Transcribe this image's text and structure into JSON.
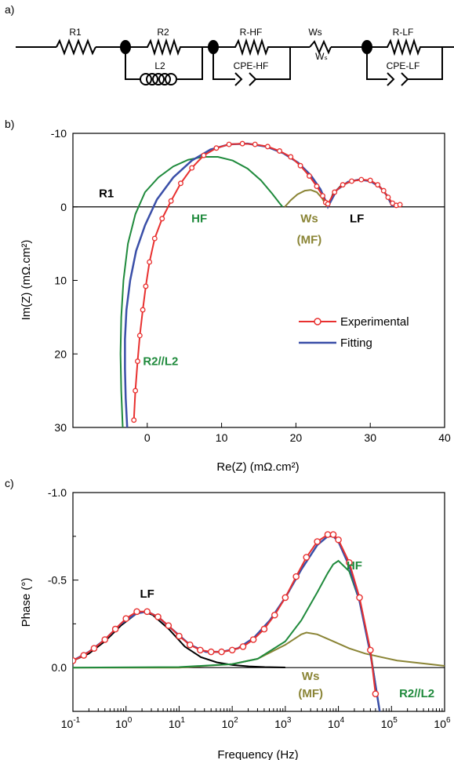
{
  "panels": {
    "a": "a)",
    "b": "b)",
    "c": "c)"
  },
  "circuit": {
    "labels": [
      "R1",
      "R2",
      "L2",
      "R-HF",
      "CPE-HF",
      "Ws",
      "Wₛ",
      "R-LF",
      "CPE-LF"
    ]
  },
  "colors": {
    "experimental": "#e8302f",
    "fitting": "#3a4fa8",
    "hf": "#1f8a3c",
    "ws": "#8a8435",
    "lf": "#000000"
  },
  "chart_data": [
    {
      "type": "scatter",
      "panel": "b",
      "xlabel": "Re(Z) (mΩ.cm²)",
      "ylabel": "Im(Z) (mΩ.cm²)",
      "xlim": [
        -10,
        40
      ],
      "ylim": [
        -10,
        30
      ],
      "y_inverted": true,
      "xticks": [
        "0",
        "10",
        "20",
        "30",
        "40"
      ],
      "yticks": [
        "-10",
        "0",
        "10",
        "20",
        "30"
      ],
      "legend": {
        "position": "center-right",
        "entries": [
          "Experimental",
          "Fitting"
        ]
      },
      "annotations": [
        {
          "text": "R1",
          "color": "#000000",
          "x": -5.5,
          "y": -1.3
        },
        {
          "text": "HF",
          "color": "#1f8a3c",
          "x": 7,
          "y": 2.1
        },
        {
          "text": "Ws",
          "color": "#8a8435",
          "x": 21.8,
          "y": 2.1
        },
        {
          "text": "(MF)",
          "color": "#8a8435",
          "x": 21.8,
          "y": 5.0
        },
        {
          "text": "LF",
          "color": "#000000",
          "x": 28.2,
          "y": 2.1
        },
        {
          "text": "R2//L2",
          "color": "#1f8a3c",
          "x": 1.8,
          "y": 21.5
        }
      ],
      "series": [
        {
          "name": "Experimental",
          "color": "#e8302f",
          "marker": "circle",
          "x": [
            -1.8,
            -1.6,
            -1.3,
            -1.0,
            -0.6,
            -0.2,
            0.3,
            1.0,
            2.0,
            3.2,
            4.5,
            6.0,
            7.6,
            9.3,
            11.0,
            12.8,
            14.5,
            16.2,
            17.8,
            19.3,
            20.6,
            21.8,
            22.8,
            23.6,
            24.0,
            24.3,
            25.2,
            26.3,
            27.5,
            28.8,
            30.0,
            31.0,
            31.8,
            32.4,
            33.0,
            33.5,
            34.0
          ],
          "y": [
            29.0,
            25.0,
            21.0,
            17.5,
            14.0,
            10.8,
            7.5,
            4.3,
            1.6,
            -0.8,
            -3.2,
            -5.3,
            -7.0,
            -8.0,
            -8.5,
            -8.6,
            -8.5,
            -8.2,
            -7.6,
            -6.8,
            -5.6,
            -4.2,
            -2.8,
            -1.5,
            -0.6,
            -0.4,
            -2.0,
            -3.0,
            -3.5,
            -3.7,
            -3.6,
            -3.0,
            -2.2,
            -1.3,
            -0.5,
            -0.2,
            -0.3
          ]
        },
        {
          "name": "Fitting",
          "color": "#3a4fa8",
          "marker": "none",
          "x": [
            -2.7,
            -2.9,
            -3.0,
            -3.0,
            -2.8,
            -2.3,
            -1.5,
            -0.3,
            1.3,
            3.5,
            6.0,
            8.5,
            11.0,
            13.5,
            16.0,
            18.3,
            20.3,
            22.0,
            23.3,
            24.0,
            24.3,
            25.5,
            27.0,
            28.5,
            30.0,
            31.3,
            32.3,
            33.0
          ],
          "y": [
            30.0,
            26.0,
            22.0,
            18.0,
            14.0,
            10.0,
            6.0,
            2.5,
            -1.0,
            -4.0,
            -6.3,
            -7.8,
            -8.5,
            -8.6,
            -8.2,
            -7.3,
            -6.0,
            -4.3,
            -2.4,
            -0.8,
            0.0,
            -2.3,
            -3.4,
            -3.7,
            -3.5,
            -2.7,
            -1.5,
            0.0
          ]
        },
        {
          "name": "HF",
          "color": "#1f8a3c",
          "marker": "none",
          "x": [
            -3.3,
            -3.5,
            -3.6,
            -3.5,
            -3.2,
            -2.6,
            -1.6,
            -0.3,
            1.5,
            3.5,
            5.5,
            7.5,
            9.5,
            11.5,
            13.5,
            15.3,
            16.8,
            17.8,
            18.2
          ],
          "y": [
            30.0,
            25.0,
            20.0,
            15.0,
            10.0,
            5.0,
            1.0,
            -2.0,
            -4.0,
            -5.5,
            -6.4,
            -6.8,
            -6.8,
            -6.3,
            -5.2,
            -3.6,
            -1.8,
            -0.5,
            0.0
          ]
        },
        {
          "name": "Ws",
          "color": "#8a8435",
          "marker": "none",
          "x": [
            18.5,
            19.3,
            20.2,
            21.2,
            22.0,
            22.8,
            23.5,
            24.2
          ],
          "y": [
            0.0,
            -0.9,
            -1.7,
            -2.2,
            -2.3,
            -2.0,
            -1.2,
            0.0
          ]
        },
        {
          "name": "LF",
          "color": "#000000",
          "marker": "none",
          "x": [
            24.3,
            25.0,
            26.0,
            27.0,
            28.0,
            29.0,
            30.0,
            31.0,
            31.8,
            32.4,
            33.0
          ],
          "y": [
            0.0,
            -1.8,
            -2.8,
            -3.3,
            -3.6,
            -3.7,
            -3.5,
            -3.0,
            -2.2,
            -1.2,
            0.0
          ]
        }
      ]
    },
    {
      "type": "line",
      "panel": "c",
      "xlabel": "Frequency (Hz)",
      "ylabel": "Phase (°)",
      "x_scale": "log",
      "xlim": [
        0.1,
        1000000
      ],
      "ylim": [
        -1.0,
        0.25
      ],
      "y_inverted": true,
      "yticks": [
        "-1.0",
        "-0.5",
        "0.0"
      ],
      "xticks": [
        {
          "base": "10",
          "exp": "-1"
        },
        {
          "base": "10",
          "exp": "0"
        },
        {
          "base": "10",
          "exp": "1"
        },
        {
          "base": "10",
          "exp": "2"
        },
        {
          "base": "10",
          "exp": "3"
        },
        {
          "base": "10",
          "exp": "4"
        },
        {
          "base": "10",
          "exp": "5"
        },
        {
          "base": "10",
          "exp": "6"
        }
      ],
      "annotations": [
        {
          "text": "LF",
          "color": "#000000",
          "x": 2.5,
          "y": -0.4
        },
        {
          "text": "HF",
          "color": "#1f8a3c",
          "x": 20000,
          "y": -0.56
        },
        {
          "text": "Ws",
          "color": "#8a8435",
          "x": 3000,
          "y": 0.07
        },
        {
          "text": "(MF)",
          "color": "#8a8435",
          "x": 3000,
          "y": 0.17
        },
        {
          "text": "R2//L2",
          "color": "#1f8a3c",
          "x": 300000,
          "y": 0.17
        }
      ],
      "series": [
        {
          "name": "Experimental",
          "color": "#e8302f",
          "marker": "circle",
          "x": [
            0.1,
            0.16,
            0.25,
            0.4,
            0.63,
            1.0,
            1.6,
            2.5,
            4.0,
            6.3,
            10,
            16,
            25,
            40,
            63,
            100,
            160,
            250,
            400,
            630,
            1000,
            1600,
            2500,
            4000,
            6300,
            8000,
            10000,
            16000,
            25000,
            40000,
            50000
          ],
          "y": [
            -0.04,
            -0.07,
            -0.11,
            -0.16,
            -0.22,
            -0.28,
            -0.32,
            -0.32,
            -0.29,
            -0.24,
            -0.18,
            -0.13,
            -0.1,
            -0.09,
            -0.09,
            -0.1,
            -0.12,
            -0.16,
            -0.22,
            -0.3,
            -0.4,
            -0.52,
            -0.63,
            -0.72,
            -0.76,
            -0.76,
            -0.73,
            -0.6,
            -0.4,
            -0.1,
            0.15
          ]
        },
        {
          "name": "Fitting",
          "color": "#3a4fa8",
          "marker": "none",
          "x": [
            0.1,
            0.2,
            0.4,
            0.8,
            1.6,
            2.5,
            4,
            8,
            16,
            32,
            64,
            128,
            256,
            512,
            1000,
            2000,
            4000,
            6300,
            8000,
            10000,
            16000,
            25000,
            40000,
            50000,
            60000
          ],
          "y": [
            -0.04,
            -0.09,
            -0.16,
            -0.25,
            -0.31,
            -0.32,
            -0.29,
            -0.21,
            -0.13,
            -0.09,
            -0.09,
            -0.11,
            -0.17,
            -0.27,
            -0.4,
            -0.56,
            -0.7,
            -0.75,
            -0.75,
            -0.72,
            -0.58,
            -0.38,
            -0.08,
            0.1,
            0.25
          ]
        },
        {
          "name": "HF",
          "color": "#1f8a3c",
          "marker": "none",
          "x": [
            0.1,
            10,
            100,
            300,
            1000,
            2000,
            4000,
            6300,
            8000,
            10000,
            16000,
            25000,
            40000,
            50000,
            60000
          ],
          "y": [
            0.0,
            -0.003,
            -0.02,
            -0.05,
            -0.15,
            -0.27,
            -0.43,
            -0.54,
            -0.59,
            -0.61,
            -0.55,
            -0.38,
            -0.1,
            0.1,
            0.25
          ]
        },
        {
          "name": "Ws",
          "color": "#8a8435",
          "marker": "none",
          "x": [
            0.1,
            10,
            100,
            300,
            1000,
            2000,
            2500,
            4000,
            8000,
            16000,
            32000,
            64000,
            128000,
            256000,
            512000,
            1000000
          ],
          "y": [
            0.0,
            0.0,
            -0.02,
            -0.05,
            -0.13,
            -0.19,
            -0.2,
            -0.19,
            -0.15,
            -0.11,
            -0.08,
            -0.06,
            -0.04,
            -0.03,
            -0.02,
            -0.01
          ]
        },
        {
          "name": "LF",
          "color": "#000000",
          "marker": "none",
          "x": [
            0.1,
            0.2,
            0.4,
            0.8,
            1.6,
            2.2,
            3.2,
            6.4,
            12.8,
            25.6,
            51.2,
            102,
            205,
            410,
            1000
          ],
          "y": [
            -0.04,
            -0.08,
            -0.15,
            -0.24,
            -0.31,
            -0.32,
            -0.3,
            -0.22,
            -0.12,
            -0.06,
            -0.03,
            -0.015,
            -0.007,
            -0.003,
            -0.001
          ]
        }
      ]
    }
  ]
}
